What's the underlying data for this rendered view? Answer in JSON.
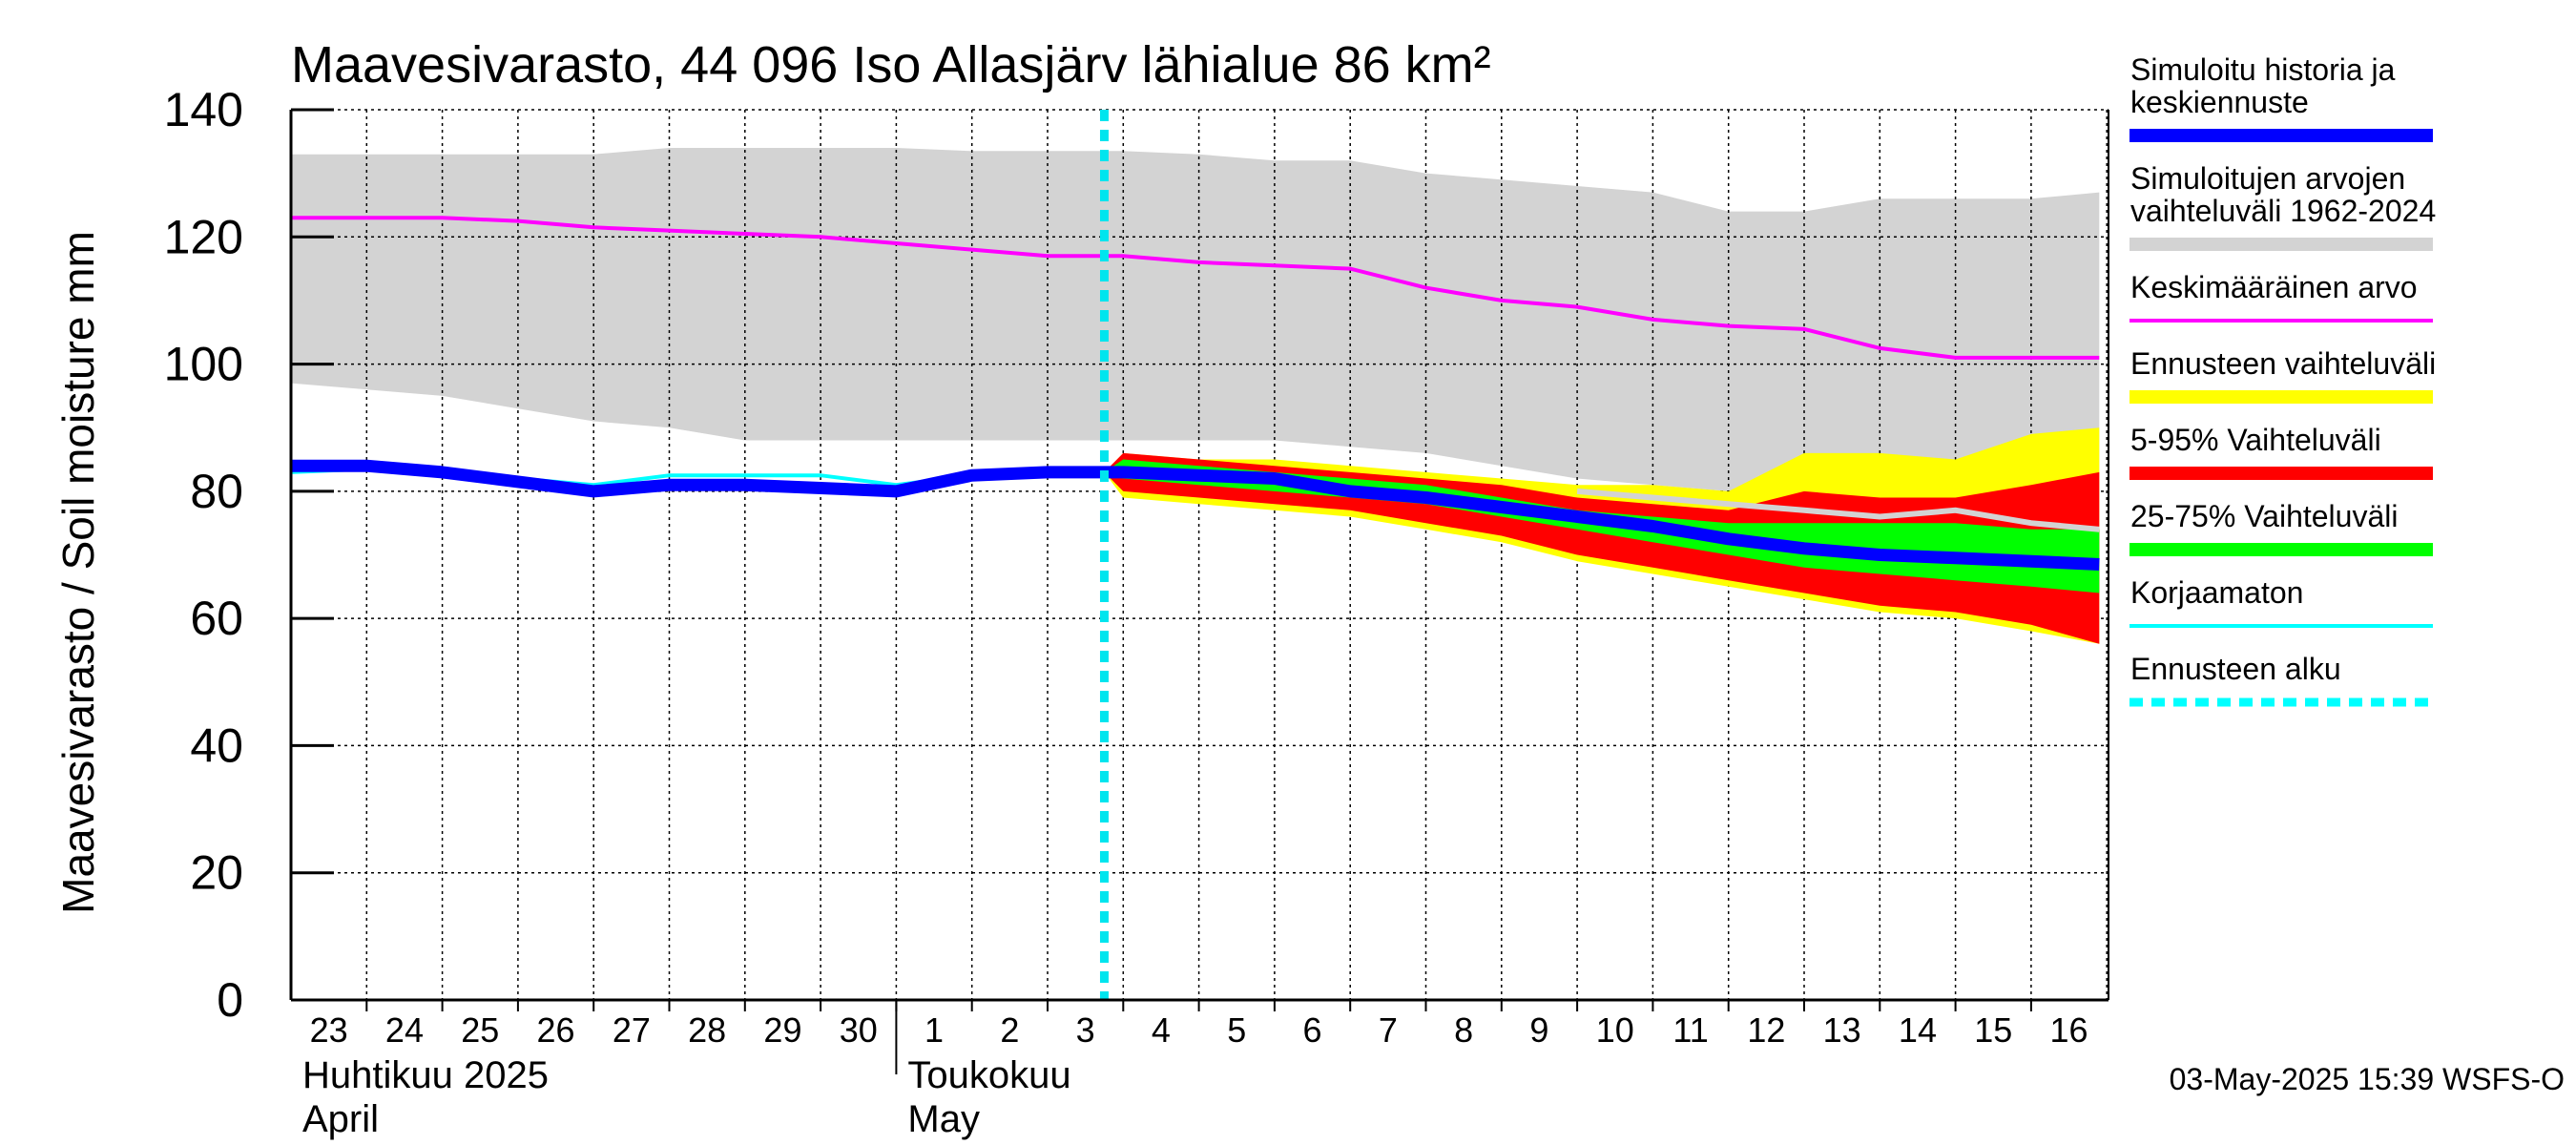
{
  "chart_data": {
    "type": "area",
    "title": "Maavesivarasto, 44 096 Iso Allasjärv lähialue 86 km²",
    "ylabel": "Maavesivarasto / Soil moisture   mm",
    "ylim": [
      0,
      140
    ],
    "yticks": [
      "0",
      "20",
      "40",
      "60",
      "80",
      "100",
      "120",
      "140"
    ],
    "x_days": [
      "23",
      "24",
      "25",
      "26",
      "27",
      "28",
      "29",
      "30",
      "1",
      "2",
      "3",
      "4",
      "5",
      "6",
      "7",
      "8",
      "9",
      "10",
      "11",
      "12",
      "13",
      "14",
      "15",
      "16"
    ],
    "month_labels": [
      {
        "line1": "Huhtikuu  2025",
        "line2": "April",
        "start_index": 0
      },
      {
        "line1": "Toukokuu",
        "line2": "May",
        "start_index": 8
      }
    ],
    "grid": true,
    "forecast_start": 10.75,
    "history_range": {
      "x": [
        0,
        1,
        2,
        3,
        4,
        5,
        6,
        7,
        8,
        9,
        10,
        11,
        12,
        13,
        14,
        15,
        16,
        17,
        18,
        19,
        20,
        21,
        22,
        23,
        23.9
      ],
      "upper": [
        133,
        133,
        133,
        133,
        133,
        134,
        134,
        134,
        134,
        133.5,
        133.5,
        133.5,
        133,
        132,
        132,
        130,
        129,
        128,
        127,
        124,
        124,
        126,
        126,
        126,
        127
      ],
      "lower": [
        97,
        96,
        95,
        93,
        91,
        90,
        88,
        88,
        88,
        88,
        88,
        88,
        88,
        88,
        87,
        86,
        84,
        82,
        81,
        80,
        80,
        80,
        80,
        80,
        80
      ]
    },
    "mean": {
      "x": [
        0,
        1,
        2,
        3,
        4,
        5,
        6,
        7,
        8,
        9,
        10,
        11,
        12,
        13,
        14,
        15,
        16,
        17,
        18,
        19,
        20,
        21,
        22,
        23,
        23.9
      ],
      "y": [
        123,
        123,
        123,
        122.5,
        121.5,
        121,
        120.5,
        120,
        119,
        118,
        117,
        117,
        116,
        115.5,
        115,
        112,
        110,
        109,
        107,
        106,
        105.5,
        102.5,
        101,
        101,
        101
      ]
    },
    "forecast_bands": {
      "x": [
        10.75,
        11,
        12,
        13,
        14,
        15,
        16,
        17,
        18,
        19,
        20,
        21,
        22,
        23,
        23.9
      ],
      "full_upper": [
        83,
        86,
        85,
        85,
        84,
        83,
        82,
        81,
        81,
        80,
        86,
        86,
        85,
        89,
        90
      ],
      "full_lower": [
        83,
        79,
        78,
        77,
        76,
        74,
        72,
        69,
        67,
        65,
        63,
        61,
        60,
        58,
        56
      ],
      "p95_upper": [
        83,
        86,
        85,
        84,
        83,
        82,
        81,
        79,
        78,
        77,
        80,
        79,
        79,
        81,
        83
      ],
      "p05_lower": [
        83,
        80,
        79,
        78,
        77,
        75,
        73,
        70,
        68,
        66,
        64,
        62,
        61,
        59,
        56
      ],
      "p75_upper": [
        83,
        85,
        84,
        83,
        82,
        81,
        79,
        77,
        76,
        75,
        75,
        75,
        75,
        74,
        74
      ],
      "p25_lower": [
        83,
        82,
        81,
        80,
        79,
        78,
        76,
        74,
        72,
        70,
        68,
        67,
        66,
        65,
        64
      ]
    },
    "forecast_gray_line": {
      "x": [
        17,
        18,
        19,
        20,
        21,
        22,
        23,
        23.9
      ],
      "y": [
        80,
        79,
        78,
        77,
        76,
        77,
        75,
        74
      ]
    },
    "simulated": {
      "x": [
        0,
        1,
        2,
        3,
        4,
        5,
        6,
        7,
        8,
        9,
        10,
        11,
        12,
        13,
        14,
        15,
        16,
        17,
        18,
        19,
        20,
        21,
        22,
        23,
        23.9
      ],
      "y": [
        84,
        84,
        83,
        81.5,
        80,
        81,
        81,
        80.5,
        80,
        82.5,
        83,
        83,
        82.5,
        82,
        80,
        79,
        77.5,
        76,
        74.5,
        72.5,
        71,
        70,
        69.5,
        69,
        68.5
      ]
    },
    "uncorrected": {
      "x": [
        0,
        1,
        2,
        3,
        4,
        5,
        6,
        7,
        8,
        9,
        10
      ],
      "y": [
        83,
        83.5,
        83,
        82,
        81,
        82.5,
        82.5,
        82.5,
        81,
        82.5,
        83
      ]
    },
    "legend": [
      {
        "label_lines": [
          "Simuloitu historia ja",
          "keskiennuste"
        ],
        "color": "#0000ff",
        "style": "thick"
      },
      {
        "label_lines": [
          "Simuloitujen arvojen",
          "vaihteluväli 1962-2024"
        ],
        "color": "#d3d3d3",
        "style": "thick"
      },
      {
        "label_lines": [
          "Keskimääräinen arvo"
        ],
        "color": "#ff00ff",
        "style": "thin"
      },
      {
        "label_lines": [
          "Ennusteen vaihteluväli"
        ],
        "color": "#ffff00",
        "style": "thick"
      },
      {
        "label_lines": [
          "5-95% Vaihteluväli"
        ],
        "color": "#ff0000",
        "style": "thick"
      },
      {
        "label_lines": [
          "25-75% Vaihteluväli"
        ],
        "color": "#00ff00",
        "style": "thick"
      },
      {
        "label_lines": [
          "Korjaamaton"
        ],
        "color": "#00ffff",
        "style": "thin"
      },
      {
        "label_lines": [
          "Ennusteen alku"
        ],
        "color": "#00ffff",
        "style": "dashed"
      }
    ],
    "footer": "03-May-2025 15:39 WSFS-O"
  }
}
